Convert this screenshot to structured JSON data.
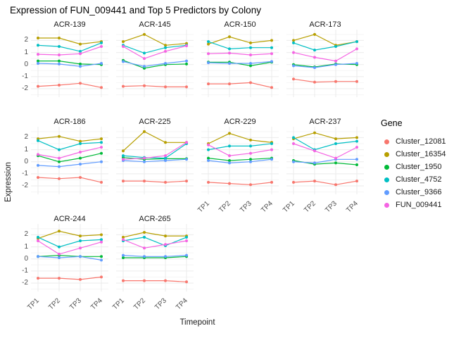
{
  "chart_data": {
    "type": "line",
    "title": "Expression of FUN_009441 and Top 5 Predictors by Colony",
    "xlabel": "Timepoint",
    "ylabel": "Expression",
    "x": [
      "TP1",
      "TP2",
      "TP3",
      "TP4"
    ],
    "ylim": [
      -2.7,
      2.9
    ],
    "yticks": [
      -2,
      -1,
      0,
      1,
      2
    ],
    "yticks_minor": [
      -2.5,
      -1.5,
      -0.5,
      0.5,
      1.5,
      2.5
    ],
    "grid": true,
    "legend": {
      "title": "Gene",
      "position": "right",
      "entries": [
        "Cluster_12081",
        "Cluster_16354",
        "Cluster_1950",
        "Cluster_4752",
        "Cluster_9366",
        "FUN_009441"
      ]
    },
    "series_colors": {
      "Cluster_12081": "#F8766D",
      "Cluster_16354": "#B79F00",
      "Cluster_1950": "#00BA38",
      "Cluster_4752": "#00BFC4",
      "Cluster_9366": "#619CFF",
      "FUN_009441": "#F564E3"
    },
    "facets": [
      {
        "colony": "ACR-139",
        "values": {
          "Cluster_12081": [
            -1.8,
            -1.7,
            -1.55,
            -1.9
          ],
          "Cluster_16354": [
            2.2,
            2.2,
            1.7,
            1.9
          ],
          "Cluster_1950": [
            0.3,
            0.3,
            0.05,
            0.0
          ],
          "Cluster_4752": [
            1.6,
            1.5,
            1.1,
            1.8
          ],
          "Cluster_9366": [
            0.1,
            0.05,
            -0.15,
            0.1
          ],
          "FUN_009441": [
            0.85,
            0.8,
            0.9,
            1.5
          ]
        }
      },
      {
        "colony": "ACR-145",
        "values": {
          "Cluster_12081": [
            -1.8,
            -1.75,
            -1.85,
            -1.85
          ],
          "Cluster_16354": [
            1.9,
            2.5,
            1.6,
            1.75
          ],
          "Cluster_1950": [
            0.35,
            -0.3,
            0.0,
            0.05
          ],
          "Cluster_4752": [
            1.6,
            0.95,
            1.4,
            1.6
          ],
          "Cluster_9366": [
            0.25,
            -0.15,
            0.1,
            0.3
          ],
          "FUN_009441": [
            1.5,
            0.5,
            1.1,
            1.55
          ]
        }
      },
      {
        "colony": "ACR-150",
        "values": {
          "Cluster_12081": [
            -1.6,
            -1.6,
            -1.5,
            -1.9
          ],
          "Cluster_16354": [
            1.7,
            2.3,
            1.8,
            2.0
          ],
          "Cluster_1950": [
            0.2,
            0.2,
            -0.1,
            0.2
          ],
          "Cluster_4752": [
            1.9,
            1.3,
            1.4,
            1.4
          ],
          "Cluster_9366": [
            0.15,
            0.1,
            0.1,
            0.25
          ],
          "FUN_009441": [
            0.9,
            0.95,
            0.8,
            0.9
          ]
        }
      },
      {
        "colony": "ACR-173",
        "values": {
          "Cluster_12081": [
            -1.2,
            -1.45,
            -1.4,
            -1.4
          ],
          "Cluster_16354": [
            2.0,
            2.5,
            1.6,
            1.9
          ],
          "Cluster_1950": [
            0.0,
            -0.2,
            0.05,
            0.0
          ],
          "Cluster_4752": [
            1.8,
            1.2,
            1.5,
            1.9
          ],
          "Cluster_9366": [
            -0.1,
            -0.25,
            0.0,
            0.1
          ],
          "FUN_009441": [
            1.0,
            0.6,
            0.3,
            1.3
          ]
        }
      },
      {
        "colony": "ACR-186",
        "values": {
          "Cluster_12081": [
            -1.3,
            -1.4,
            -1.3,
            -1.7
          ],
          "Cluster_16354": [
            1.9,
            2.1,
            1.7,
            1.9
          ],
          "Cluster_1950": [
            0.5,
            0.0,
            0.3,
            0.7
          ],
          "Cluster_4752": [
            1.75,
            1.0,
            1.5,
            1.6
          ],
          "Cluster_9366": [
            -0.3,
            -0.4,
            -0.2,
            0.0
          ],
          "FUN_009441": [
            0.6,
            0.3,
            0.8,
            1.2
          ]
        }
      },
      {
        "colony": "ACR-225",
        "values": {
          "Cluster_12081": [
            -1.6,
            -1.6,
            -1.7,
            -1.6
          ],
          "Cluster_16354": [
            0.9,
            2.5,
            1.6,
            1.6
          ],
          "Cluster_1950": [
            0.35,
            0.2,
            0.25,
            0.25
          ],
          "Cluster_4752": [
            0.5,
            0.35,
            0.3,
            1.5
          ],
          "Cluster_9366": [
            0.1,
            0.0,
            0.1,
            0.2
          ],
          "FUN_009441": [
            0.2,
            0.3,
            0.5,
            1.6
          ]
        }
      },
      {
        "colony": "ACR-229",
        "values": {
          "Cluster_12081": [
            -1.7,
            -1.8,
            -1.9,
            -1.7
          ],
          "Cluster_16354": [
            1.5,
            2.35,
            1.8,
            1.6
          ],
          "Cluster_1950": [
            0.3,
            0.1,
            0.2,
            0.3
          ],
          "Cluster_4752": [
            1.0,
            1.3,
            1.3,
            1.5
          ],
          "Cluster_9366": [
            0.1,
            -0.1,
            0.0,
            0.2
          ],
          "FUN_009441": [
            1.4,
            0.5,
            0.7,
            1.0
          ]
        }
      },
      {
        "colony": "ACR-237",
        "values": {
          "Cluster_12081": [
            -1.7,
            -1.6,
            -1.9,
            -1.6
          ],
          "Cluster_16354": [
            1.9,
            2.4,
            1.9,
            2.0
          ],
          "Cluster_1950": [
            0.1,
            -0.2,
            -0.1,
            -0.25
          ],
          "Cluster_4752": [
            2.0,
            1.0,
            1.5,
            1.7
          ],
          "Cluster_9366": [
            0.0,
            -0.1,
            0.2,
            0.2
          ],
          "FUN_009441": [
            1.5,
            0.9,
            0.3,
            1.2
          ]
        }
      },
      {
        "colony": "ACR-244",
        "values": {
          "Cluster_12081": [
            -1.6,
            -1.6,
            -1.7,
            -1.5
          ],
          "Cluster_16354": [
            1.7,
            2.3,
            1.9,
            2.0
          ],
          "Cluster_1950": [
            0.2,
            0.3,
            0.2,
            0.2
          ],
          "Cluster_4752": [
            1.8,
            1.0,
            1.5,
            1.6
          ],
          "Cluster_9366": [
            0.2,
            0.1,
            0.2,
            -0.1
          ],
          "FUN_009441": [
            1.5,
            0.4,
            0.9,
            1.4
          ]
        }
      },
      {
        "colony": "ACR-265",
        "values": {
          "Cluster_12081": [
            -1.8,
            -1.8,
            -1.8,
            -1.9
          ],
          "Cluster_16354": [
            1.8,
            2.2,
            1.9,
            1.9
          ],
          "Cluster_1950": [
            0.1,
            0.1,
            0.1,
            0.2
          ],
          "Cluster_4752": [
            1.5,
            1.8,
            1.1,
            1.8
          ],
          "Cluster_9366": [
            0.3,
            0.2,
            0.2,
            0.3
          ],
          "FUN_009441": [
            1.6,
            0.9,
            1.2,
            1.5
          ]
        }
      }
    ]
  }
}
